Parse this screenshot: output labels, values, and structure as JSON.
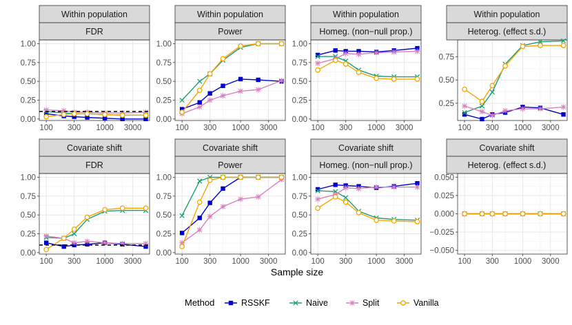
{
  "figure": {
    "xlabel": "Sample size",
    "legend_title": "Method",
    "methods": [
      {
        "name": "RSSKF",
        "color": "#0000cc",
        "marker": "square"
      },
      {
        "name": "Naive",
        "color": "#1a9e77",
        "marker": "cross"
      },
      {
        "name": "Split",
        "color": "#d980c0",
        "marker": "asterisk"
      },
      {
        "name": "Vanilla",
        "color": "#f5a500",
        "marker": "circle"
      }
    ]
  },
  "chart_data": [
    {
      "type": "line",
      "strip_top": "Within population",
      "strip_bottom": "FDR",
      "x": [
        100,
        200,
        300,
        500,
        1000,
        2000,
        5000
      ],
      "ylim": [
        -0.02,
        1.05
      ],
      "yticks": [
        0,
        0.25,
        0.5,
        0.75,
        1
      ],
      "ytick_labels": [
        "0.00",
        "0.25",
        "0.50",
        "0.75",
        "1.00"
      ],
      "xticks": [
        100,
        300,
        1000,
        3000
      ],
      "xtick_labels": [
        "100",
        "300",
        "1000",
        "3000"
      ],
      "reference_line": 0.1,
      "series": [
        {
          "name": "RSSKF",
          "values": [
            0.07,
            0.04,
            0.03,
            0.02,
            0.01,
            0.0,
            0.0
          ]
        },
        {
          "name": "Naive",
          "values": [
            0.1,
            0.08,
            0.07,
            0.07,
            0.06,
            0.05,
            0.05
          ]
        },
        {
          "name": "Split",
          "values": [
            0.12,
            0.11,
            0.09,
            0.09,
            0.08,
            0.08,
            0.09
          ]
        },
        {
          "name": "Vanilla",
          "values": [
            0.03,
            0.06,
            0.07,
            0.07,
            0.06,
            0.05,
            0.05
          ]
        }
      ]
    },
    {
      "type": "line",
      "strip_top": "Within population",
      "strip_bottom": "Power",
      "x": [
        100,
        200,
        300,
        500,
        1000,
        2000,
        5000
      ],
      "ylim": [
        -0.02,
        1.05
      ],
      "yticks": [
        0,
        0.25,
        0.5,
        0.75,
        1
      ],
      "ytick_labels": [
        "0.00",
        "0.25",
        "0.50",
        "0.75",
        "1.00"
      ],
      "xticks": [
        100,
        300,
        1000,
        3000
      ],
      "xtick_labels": [
        "100",
        "300",
        "1000",
        "3000"
      ],
      "series": [
        {
          "name": "RSSKF",
          "values": [
            0.13,
            0.22,
            0.34,
            0.44,
            0.53,
            0.52,
            0.5
          ]
        },
        {
          "name": "Naive",
          "values": [
            0.25,
            0.5,
            0.6,
            0.78,
            0.95,
            1.0,
            1.0
          ]
        },
        {
          "name": "Split",
          "values": [
            0.07,
            0.16,
            0.25,
            0.31,
            0.37,
            0.39,
            0.51
          ]
        },
        {
          "name": "Vanilla",
          "values": [
            0.09,
            0.38,
            0.6,
            0.8,
            0.97,
            1.0,
            1.0
          ]
        }
      ]
    },
    {
      "type": "line",
      "strip_top": "Within population",
      "strip_bottom": "Homeg. (non−null prop.)",
      "x": [
        100,
        200,
        300,
        500,
        1000,
        2000,
        5000
      ],
      "ylim": [
        -0.02,
        1.05
      ],
      "yticks": [
        0,
        0.25,
        0.5,
        0.75,
        1
      ],
      "ytick_labels": [
        "0.00",
        "0.25",
        "0.50",
        "0.75",
        "1.00"
      ],
      "xticks": [
        100,
        300,
        1000,
        3000
      ],
      "xtick_labels": [
        "100",
        "300",
        "1000",
        "3000"
      ],
      "series": [
        {
          "name": "RSSKF",
          "values": [
            0.85,
            0.91,
            0.9,
            0.9,
            0.89,
            0.91,
            0.94
          ]
        },
        {
          "name": "Naive",
          "values": [
            0.83,
            0.83,
            0.77,
            0.65,
            0.57,
            0.56,
            0.56
          ]
        },
        {
          "name": "Split",
          "values": [
            0.74,
            0.8,
            0.87,
            0.86,
            0.88,
            0.89,
            0.9
          ]
        },
        {
          "name": "Vanilla",
          "values": [
            0.65,
            0.78,
            0.73,
            0.62,
            0.54,
            0.53,
            0.53
          ]
        }
      ]
    },
    {
      "type": "line",
      "strip_top": "Within population",
      "strip_bottom": "Heterog. (effect s.d.)",
      "x": [
        100,
        200,
        300,
        500,
        1000,
        2000,
        5000
      ],
      "ylim": [
        0.065,
        0.93
      ],
      "yticks": [
        0.25,
        0.5,
        0.75
      ],
      "ytick_labels": [
        "0.25",
        "0.50",
        "0.75"
      ],
      "xticks": [
        100,
        300,
        1000,
        3000
      ],
      "xtick_labels": [
        "100",
        "300",
        "1000",
        "3000"
      ],
      "series": [
        {
          "name": "RSSKF",
          "values": [
            0.13,
            0.08,
            0.13,
            0.15,
            0.21,
            0.2,
            0.13
          ]
        },
        {
          "name": "Naive",
          "values": [
            0.15,
            0.22,
            0.37,
            0.67,
            0.87,
            0.91,
            0.92
          ]
        },
        {
          "name": "Split",
          "values": [
            0.22,
            0.16,
            0.12,
            0.17,
            0.19,
            0.19,
            0.21
          ]
        },
        {
          "name": "Vanilla",
          "values": [
            0.4,
            0.27,
            0.44,
            0.65,
            0.86,
            0.87,
            0.87
          ]
        }
      ]
    },
    {
      "type": "line",
      "strip_top": "Covariate shift",
      "strip_bottom": "FDR",
      "x": [
        100,
        200,
        300,
        500,
        1000,
        2000,
        5000
      ],
      "ylim": [
        -0.02,
        1.05
      ],
      "yticks": [
        0,
        0.25,
        0.5,
        0.75,
        1
      ],
      "ytick_labels": [
        "0.00",
        "0.25",
        "0.50",
        "0.75",
        "1.00"
      ],
      "xticks": [
        100,
        300,
        1000,
        3000
      ],
      "xtick_labels": [
        "100",
        "300",
        "1000",
        "3000"
      ],
      "reference_line": 0.1,
      "series": [
        {
          "name": "RSSKF",
          "values": [
            0.13,
            0.08,
            0.1,
            0.11,
            0.13,
            0.11,
            0.08
          ]
        },
        {
          "name": "Naive",
          "values": [
            0.2,
            0.19,
            0.25,
            0.44,
            0.55,
            0.56,
            0.56
          ]
        },
        {
          "name": "Split",
          "values": [
            0.22,
            0.19,
            0.13,
            0.15,
            0.13,
            0.12,
            0.12
          ]
        },
        {
          "name": "Vanilla",
          "values": [
            0.04,
            0.19,
            0.31,
            0.47,
            0.57,
            0.59,
            0.59
          ]
        }
      ]
    },
    {
      "type": "line",
      "strip_top": "Covariate shift",
      "strip_bottom": "Power",
      "x": [
        100,
        200,
        300,
        500,
        1000,
        2000,
        5000
      ],
      "ylim": [
        -0.02,
        1.05
      ],
      "yticks": [
        0,
        0.25,
        0.5,
        0.75,
        1
      ],
      "ytick_labels": [
        "0.00",
        "0.25",
        "0.50",
        "0.75",
        "1.00"
      ],
      "xticks": [
        100,
        300,
        1000,
        3000
      ],
      "xtick_labels": [
        "100",
        "300",
        "1000",
        "3000"
      ],
      "series": [
        {
          "name": "RSSKF",
          "values": [
            0.26,
            0.46,
            0.66,
            0.85,
            1.0,
            1.0,
            1.0
          ]
        },
        {
          "name": "Naive",
          "values": [
            0.49,
            0.95,
            1.0,
            1.0,
            1.0,
            1.0,
            1.0
          ]
        },
        {
          "name": "Split",
          "values": [
            0.13,
            0.3,
            0.48,
            0.61,
            0.71,
            0.74,
            0.97
          ]
        },
        {
          "name": "Vanilla",
          "values": [
            0.08,
            0.67,
            0.96,
            1.0,
            1.0,
            1.0,
            1.0
          ]
        }
      ]
    },
    {
      "type": "line",
      "strip_top": "Covariate shift",
      "strip_bottom": "Homeg. (non−null prop.)",
      "x": [
        100,
        200,
        300,
        500,
        1000,
        2000,
        5000
      ],
      "ylim": [
        -0.02,
        1.05
      ],
      "yticks": [
        0,
        0.25,
        0.5,
        0.75,
        1
      ],
      "ytick_labels": [
        "0.00",
        "0.25",
        "0.50",
        "0.75",
        "1.00"
      ],
      "xticks": [
        100,
        300,
        1000,
        3000
      ],
      "xtick_labels": [
        "100",
        "300",
        "1000",
        "3000"
      ],
      "series": [
        {
          "name": "RSSKF",
          "values": [
            0.84,
            0.9,
            0.89,
            0.88,
            0.86,
            0.88,
            0.92
          ]
        },
        {
          "name": "Naive",
          "values": [
            0.82,
            0.81,
            0.73,
            0.55,
            0.46,
            0.44,
            0.43
          ]
        },
        {
          "name": "Split",
          "values": [
            0.71,
            0.77,
            0.86,
            0.85,
            0.87,
            0.87,
            0.87
          ]
        },
        {
          "name": "Vanilla",
          "values": [
            0.59,
            0.74,
            0.67,
            0.53,
            0.43,
            0.42,
            0.41
          ]
        }
      ]
    },
    {
      "type": "line",
      "strip_top": "Covariate shift",
      "strip_bottom": "Heterog. (effect s.d.)",
      "x": [
        100,
        200,
        300,
        500,
        1000,
        2000,
        5000
      ],
      "ylim": [
        -0.055,
        0.055
      ],
      "yticks": [
        -0.05,
        -0.025,
        0,
        0.025,
        0.05
      ],
      "ytick_labels": [
        "−0.050",
        "−0.025",
        "0.000",
        "0.025",
        "0.050"
      ],
      "xticks": [
        100,
        300,
        1000,
        3000
      ],
      "xtick_labels": [
        "100",
        "300",
        "1000",
        "3000"
      ],
      "series": [
        {
          "name": "RSSKF",
          "values": [
            0,
            0,
            0,
            0,
            0,
            0,
            0
          ]
        },
        {
          "name": "Naive",
          "values": [
            0,
            0,
            0,
            0,
            0,
            0,
            0
          ]
        },
        {
          "name": "Split",
          "values": [
            0,
            0,
            0,
            0,
            0,
            0,
            0
          ]
        },
        {
          "name": "Vanilla",
          "values": [
            0,
            0,
            0,
            0,
            0,
            0,
            0
          ]
        }
      ]
    }
  ]
}
